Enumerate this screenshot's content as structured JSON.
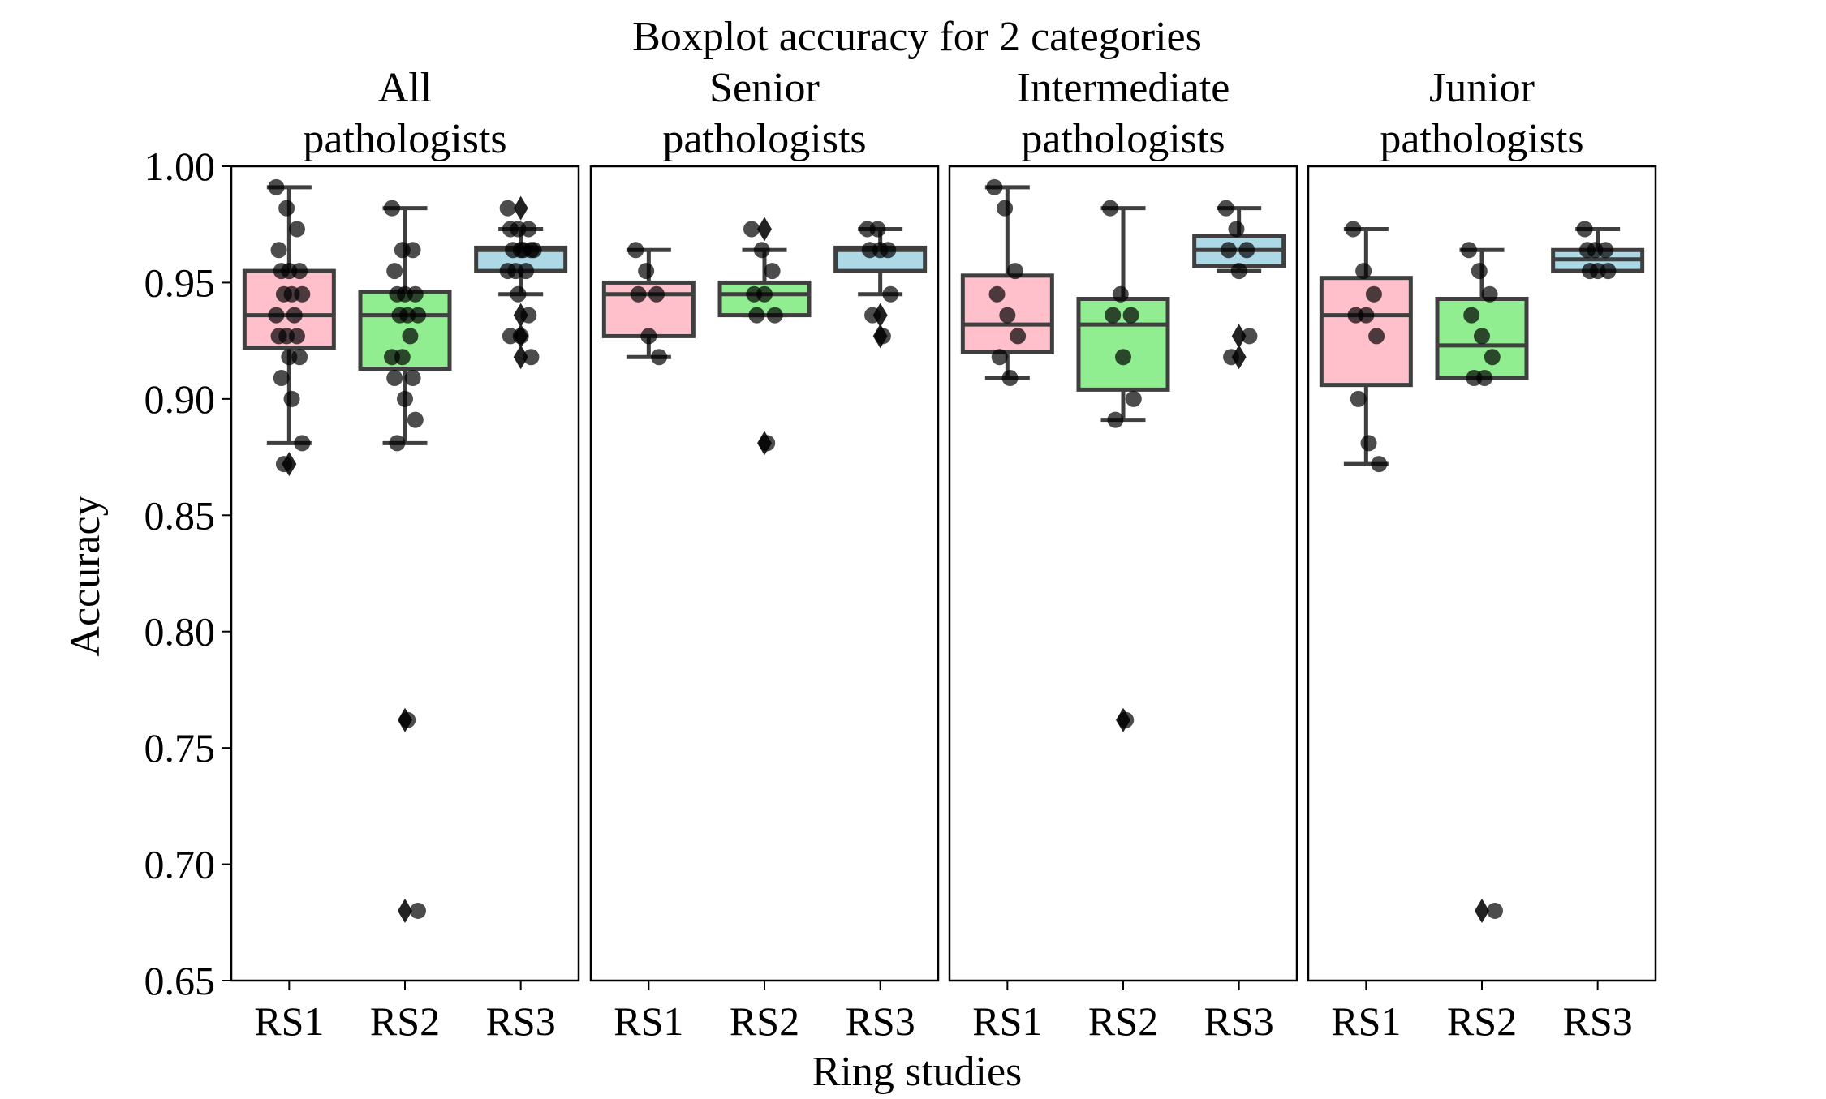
{
  "chart_data": {
    "type": "boxplot",
    "title": "Boxplot accuracy for 2 categories",
    "xlabel": "Ring studies",
    "ylabel": "Accuracy",
    "ylim": [
      0.65,
      1.0
    ],
    "yticks": [
      "0.65",
      "0.70",
      "0.75",
      "0.80",
      "0.85",
      "0.90",
      "0.95",
      "1.00"
    ],
    "categories": [
      "RS1",
      "RS2",
      "RS3"
    ],
    "colors": {
      "RS1": "#ffc0cb",
      "RS2": "#90ee90",
      "RS3": "#add8e6"
    },
    "panels": [
      {
        "title_line1": "All",
        "title_line2": "pathologists",
        "boxes": [
          {
            "name": "RS1",
            "whisker_low": 0.881,
            "q1": 0.922,
            "median": 0.936,
            "q3": 0.955,
            "whisker_high": 0.991,
            "outliers": [
              0.872
            ],
            "points": [
              0.991,
              0.982,
              0.973,
              0.964,
              0.955,
              0.955,
              0.955,
              0.945,
              0.945,
              0.945,
              0.936,
              0.936,
              0.927,
              0.927,
              0.927,
              0.918,
              0.918,
              0.909,
              0.9,
              0.881,
              0.872
            ]
          },
          {
            "name": "RS2",
            "whisker_low": 0.881,
            "q1": 0.913,
            "median": 0.936,
            "q3": 0.946,
            "whisker_high": 0.982,
            "outliers": [
              0.762,
              0.68
            ],
            "points": [
              0.982,
              0.964,
              0.964,
              0.955,
              0.945,
              0.945,
              0.945,
              0.936,
              0.936,
              0.936,
              0.927,
              0.918,
              0.918,
              0.909,
              0.909,
              0.9,
              0.891,
              0.881,
              0.762,
              0.68
            ]
          },
          {
            "name": "RS3",
            "whisker_low": 0.945,
            "q1": 0.955,
            "median": 0.964,
            "q3": 0.965,
            "whisker_high": 0.973,
            "outliers": [
              0.982,
              0.936,
              0.927,
              0.918
            ],
            "points": [
              0.982,
              0.973,
              0.973,
              0.973,
              0.964,
              0.964,
              0.964,
              0.964,
              0.964,
              0.955,
              0.955,
              0.955,
              0.945,
              0.936,
              0.927,
              0.927,
              0.918
            ]
          }
        ]
      },
      {
        "title_line1": "Senior",
        "title_line2": "pathologists",
        "boxes": [
          {
            "name": "RS1",
            "whisker_low": 0.918,
            "q1": 0.927,
            "median": 0.945,
            "q3": 0.95,
            "whisker_high": 0.964,
            "outliers": [],
            "points": [
              0.964,
              0.955,
              0.945,
              0.945,
              0.927,
              0.918
            ]
          },
          {
            "name": "RS2",
            "whisker_low": 0.936,
            "q1": 0.936,
            "median": 0.945,
            "q3": 0.95,
            "whisker_high": 0.964,
            "outliers": [
              0.973,
              0.881
            ],
            "points": [
              0.973,
              0.964,
              0.955,
              0.945,
              0.945,
              0.936,
              0.936,
              0.881
            ]
          },
          {
            "name": "RS3",
            "whisker_low": 0.945,
            "q1": 0.955,
            "median": 0.964,
            "q3": 0.965,
            "whisker_high": 0.973,
            "outliers": [
              0.936,
              0.927
            ],
            "points": [
              0.973,
              0.973,
              0.964,
              0.964,
              0.964,
              0.945,
              0.936,
              0.927
            ]
          }
        ]
      },
      {
        "title_line1": "Intermediate",
        "title_line2": "pathologists",
        "boxes": [
          {
            "name": "RS1",
            "whisker_low": 0.909,
            "q1": 0.92,
            "median": 0.932,
            "q3": 0.953,
            "whisker_high": 0.991,
            "outliers": [],
            "points": [
              0.991,
              0.982,
              0.955,
              0.945,
              0.936,
              0.927,
              0.918,
              0.909
            ]
          },
          {
            "name": "RS2",
            "whisker_low": 0.891,
            "q1": 0.904,
            "median": 0.932,
            "q3": 0.943,
            "whisker_high": 0.982,
            "outliers": [
              0.762
            ],
            "points": [
              0.982,
              0.945,
              0.936,
              0.936,
              0.918,
              0.9,
              0.891,
              0.762
            ]
          },
          {
            "name": "RS3",
            "whisker_low": 0.955,
            "q1": 0.957,
            "median": 0.964,
            "q3": 0.97,
            "whisker_high": 0.982,
            "outliers": [
              0.927,
              0.918
            ],
            "points": [
              0.982,
              0.973,
              0.964,
              0.964,
              0.955,
              0.927,
              0.918
            ]
          }
        ]
      },
      {
        "title_line1": "Junior",
        "title_line2": "pathologists",
        "boxes": [
          {
            "name": "RS1",
            "whisker_low": 0.872,
            "q1": 0.906,
            "median": 0.936,
            "q3": 0.952,
            "whisker_high": 0.973,
            "outliers": [],
            "points": [
              0.973,
              0.955,
              0.945,
              0.936,
              0.936,
              0.927,
              0.9,
              0.881,
              0.872
            ]
          },
          {
            "name": "RS2",
            "whisker_low": 0.909,
            "q1": 0.909,
            "median": 0.923,
            "q3": 0.943,
            "whisker_high": 0.964,
            "outliers": [
              0.68
            ],
            "points": [
              0.964,
              0.955,
              0.945,
              0.936,
              0.927,
              0.918,
              0.909,
              0.909,
              0.68
            ]
          },
          {
            "name": "RS3",
            "whisker_low": 0.955,
            "q1": 0.955,
            "median": 0.96,
            "q3": 0.964,
            "whisker_high": 0.973,
            "outliers": [],
            "points": [
              0.973,
              0.964,
              0.964,
              0.964,
              0.955,
              0.955,
              0.955
            ]
          }
        ]
      }
    ]
  }
}
